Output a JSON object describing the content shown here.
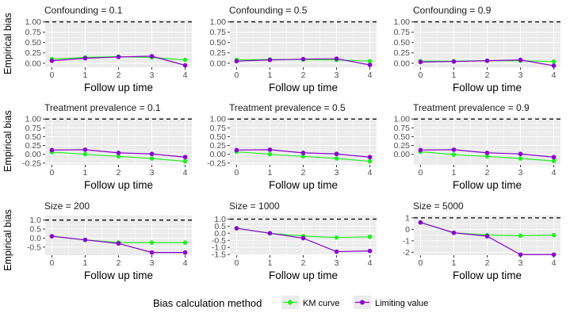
{
  "figure": {
    "row_ylabel": "Empirical bias",
    "legend": {
      "title": "Bias calculation method",
      "entries": [
        {
          "label": "KM curve",
          "color": "#22ee22"
        },
        {
          "label": "Limiting value",
          "color": "#8800cc"
        }
      ]
    },
    "colors": {
      "panel_bg": "#ebebeb",
      "grid": "#ffffff",
      "reference_line": "#000000",
      "tick_text": "#4d4d4d"
    }
  },
  "chart_data": [
    {
      "type": "line",
      "title": "Confounding = 0.1",
      "xlabel": "Follow up time",
      "ylabel": "Empirical bias",
      "x": [
        0,
        1,
        2,
        3,
        4
      ],
      "xlim": [
        -0.2,
        4.2
      ],
      "ylim": [
        -0.1,
        1.05
      ],
      "yticks": [
        0,
        0.25,
        0.5,
        0.75,
        1
      ],
      "ytick_labels": [
        "0.00",
        "0.25",
        "0.50",
        "0.75",
        "1.00"
      ],
      "xticks": [
        0,
        1,
        2,
        3,
        4
      ],
      "xtick_labels": [
        "0",
        "1",
        "2",
        "3",
        "4"
      ],
      "reference_line": 1,
      "series": [
        {
          "name": "KM curve",
          "values": [
            0.1,
            0.14,
            0.16,
            0.14,
            0.08
          ]
        },
        {
          "name": "Limiting value",
          "values": [
            0.06,
            0.12,
            0.15,
            0.17,
            -0.05
          ]
        }
      ]
    },
    {
      "type": "line",
      "title": "Confounding = 0.5",
      "xlabel": "Follow up time",
      "ylabel": "",
      "x": [
        0,
        1,
        2,
        3,
        4
      ],
      "xlim": [
        -0.2,
        4.2
      ],
      "ylim": [
        -0.1,
        1.05
      ],
      "yticks": [
        0,
        0.25,
        0.5,
        0.75,
        1
      ],
      "ytick_labels": [
        "0.00",
        "0.25",
        "0.50",
        "0.75",
        "1.00"
      ],
      "xticks": [
        0,
        1,
        2,
        3,
        4
      ],
      "xtick_labels": [
        "0",
        "1",
        "2",
        "3",
        "4"
      ],
      "reference_line": 1,
      "series": [
        {
          "name": "KM curve",
          "values": [
            0.08,
            0.09,
            0.09,
            0.08,
            0.05
          ]
        },
        {
          "name": "Limiting value",
          "values": [
            0.05,
            0.08,
            0.1,
            0.11,
            -0.04
          ]
        }
      ]
    },
    {
      "type": "line",
      "title": "Confounding = 0.9",
      "xlabel": "Follow up time",
      "ylabel": "",
      "x": [
        0,
        1,
        2,
        3,
        4
      ],
      "xlim": [
        -0.2,
        4.2
      ],
      "ylim": [
        -0.1,
        1.05
      ],
      "yticks": [
        0,
        0.25,
        0.5,
        0.75,
        1
      ],
      "ytick_labels": [
        "0.00",
        "0.25",
        "0.50",
        "0.75",
        "1.00"
      ],
      "xticks": [
        0,
        1,
        2,
        3,
        4
      ],
      "xtick_labels": [
        "0",
        "1",
        "2",
        "3",
        "4"
      ],
      "reference_line": 1,
      "series": [
        {
          "name": "KM curve",
          "values": [
            0.05,
            0.05,
            0.06,
            0.06,
            0.04
          ]
        },
        {
          "name": "Limiting value",
          "values": [
            0.03,
            0.04,
            0.06,
            0.08,
            -0.06
          ]
        }
      ]
    },
    {
      "type": "line",
      "title": "Treatment prevalence = 0.1",
      "xlabel": "Follow up time",
      "ylabel": "Empirical bias",
      "x": [
        0,
        1,
        2,
        3,
        4
      ],
      "xlim": [
        -0.2,
        4.2
      ],
      "ylim": [
        -0.3,
        1.05
      ],
      "yticks": [
        -0.25,
        0,
        0.25,
        0.5,
        0.75,
        1
      ],
      "ytick_labels": [
        "-0.25",
        "0.00",
        "0.25",
        "0.50",
        "0.75",
        "1.00"
      ],
      "xticks": [
        0,
        1,
        2,
        3,
        4
      ],
      "xtick_labels": [
        "0",
        "1",
        "2",
        "3",
        "4"
      ],
      "reference_line": 1,
      "series": [
        {
          "name": "KM curve",
          "values": [
            0.06,
            0.0,
            -0.06,
            -0.12,
            -0.2
          ]
        },
        {
          "name": "Limiting value",
          "values": [
            0.12,
            0.13,
            0.04,
            0.01,
            -0.08
          ]
        }
      ]
    },
    {
      "type": "line",
      "title": "Treatment prevalence = 0.5",
      "xlabel": "Follow up time",
      "ylabel": "",
      "x": [
        0,
        1,
        2,
        3,
        4
      ],
      "xlim": [
        -0.2,
        4.2
      ],
      "ylim": [
        -0.3,
        1.05
      ],
      "yticks": [
        -0.25,
        0,
        0.25,
        0.5,
        0.75,
        1
      ],
      "ytick_labels": [
        "-0.25",
        "0.00",
        "0.25",
        "0.50",
        "0.75",
        "1.00"
      ],
      "xticks": [
        0,
        1,
        2,
        3,
        4
      ],
      "xtick_labels": [
        "0",
        "1",
        "2",
        "3",
        "4"
      ],
      "reference_line": 1,
      "series": [
        {
          "name": "KM curve",
          "values": [
            0.07,
            0.0,
            -0.06,
            -0.12,
            -0.2
          ]
        },
        {
          "name": "Limiting value",
          "values": [
            0.12,
            0.13,
            0.04,
            0.01,
            -0.08
          ]
        }
      ]
    },
    {
      "type": "line",
      "title": "Treatment prevalence = 0.9",
      "xlabel": "Follow up time",
      "ylabel": "",
      "x": [
        0,
        1,
        2,
        3,
        4
      ],
      "xlim": [
        -0.2,
        4.2
      ],
      "ylim": [
        -0.3,
        1.05
      ],
      "yticks": [
        0,
        0.25,
        0.5,
        0.75,
        1
      ],
      "ytick_labels": [
        "0.00",
        "0.25",
        "0.50",
        "0.75",
        "1.00"
      ],
      "xticks": [
        0,
        1,
        2,
        3,
        4
      ],
      "xtick_labels": [
        "0",
        "1",
        "2",
        "3",
        "4"
      ],
      "reference_line": 1,
      "series": [
        {
          "name": "KM curve",
          "values": [
            0.07,
            -0.01,
            -0.06,
            -0.12,
            -0.19
          ]
        },
        {
          "name": "Limiting value",
          "values": [
            0.12,
            0.13,
            0.04,
            0.01,
            -0.08
          ]
        }
      ]
    },
    {
      "type": "line",
      "title": "Size = 200",
      "xlabel": "Follow up time",
      "ylabel": "Empirical bias",
      "x": [
        0,
        1,
        2,
        3,
        4
      ],
      "xlim": [
        -0.2,
        4.2
      ],
      "ylim": [
        -0.95,
        1.25
      ],
      "yticks": [
        -0.5,
        0,
        0.5,
        1
      ],
      "ytick_labels": [
        "-0.5",
        "0.0",
        "0.5",
        "1.0"
      ],
      "xticks": [
        0,
        1,
        2,
        3,
        4
      ],
      "xtick_labels": [
        "0",
        "1",
        "2",
        "3",
        "4"
      ],
      "reference_line": 1,
      "series": [
        {
          "name": "KM curve",
          "values": [
            0.1,
            -0.1,
            -0.25,
            -0.25,
            -0.25
          ]
        },
        {
          "name": "Limiting value",
          "values": [
            0.1,
            -0.1,
            -0.3,
            -0.8,
            -0.8
          ]
        }
      ]
    },
    {
      "type": "line",
      "title": "Size = 1000",
      "xlabel": "Follow up time",
      "ylabel": "",
      "x": [
        0,
        1,
        2,
        3,
        4
      ],
      "xlim": [
        -0.2,
        4.2
      ],
      "ylim": [
        -1.55,
        1.25
      ],
      "yticks": [
        -1.5,
        -1,
        -0.5,
        0,
        0.5,
        1
      ],
      "ytick_labels": [
        "-1.5",
        "-1.0",
        "-0.5",
        "0.0",
        "0.5",
        "1.0"
      ],
      "xticks": [
        0,
        1,
        2,
        3,
        4
      ],
      "xtick_labels": [
        "0",
        "1",
        "2",
        "3",
        "4"
      ],
      "reference_line": 1,
      "series": [
        {
          "name": "KM curve",
          "values": [
            0.35,
            0.0,
            -0.2,
            -0.3,
            -0.25
          ]
        },
        {
          "name": "Limiting value",
          "values": [
            0.35,
            0.0,
            -0.35,
            -1.3,
            -1.25
          ]
        }
      ]
    },
    {
      "type": "line",
      "title": "Size = 5000",
      "xlabel": "Follow up time",
      "ylabel": "",
      "x": [
        0,
        1,
        2,
        3,
        4
      ],
      "xlim": [
        -0.2,
        4.2
      ],
      "ylim": [
        -2.25,
        1.2
      ],
      "yticks": [
        -2,
        -1,
        0,
        1
      ],
      "ytick_labels": [
        "-2",
        "-1",
        "0",
        "1"
      ],
      "xticks": [
        0,
        1,
        2,
        3,
        4
      ],
      "xtick_labels": [
        "0",
        "1",
        "2",
        "3",
        "4"
      ],
      "reference_line": 1,
      "series": [
        {
          "name": "KM curve",
          "values": [
            0.6,
            -0.3,
            -0.5,
            -0.55,
            -0.5
          ]
        },
        {
          "name": "Limiting value",
          "values": [
            0.6,
            -0.3,
            -0.6,
            -2.2,
            -2.2
          ]
        }
      ]
    }
  ]
}
